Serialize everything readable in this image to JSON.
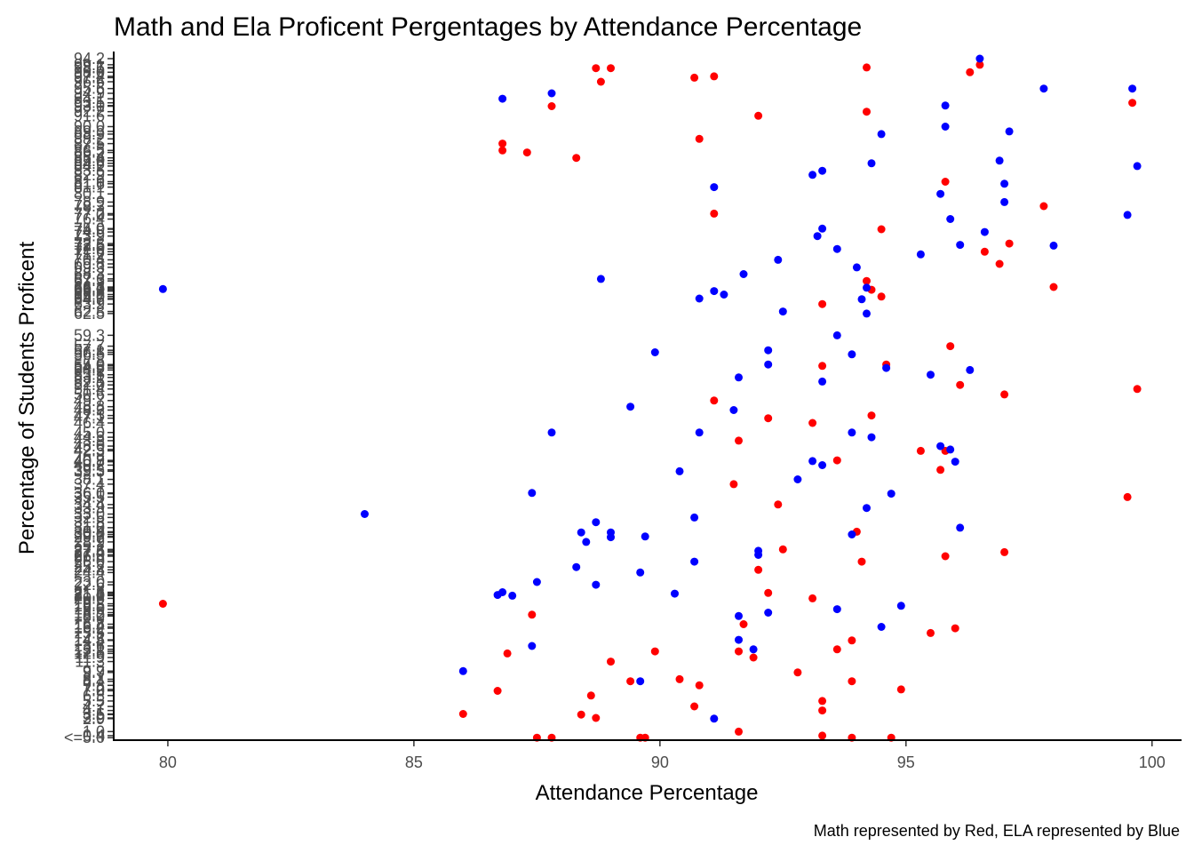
{
  "chart_data": {
    "type": "scatter",
    "title": "Math and Ela Proficent Pergentages by Attendance Percentage",
    "xlabel": "Attendance Percentage",
    "ylabel": "Percentage of Students Proficent",
    "caption": "Math represented by Red, ELA represented by Blue",
    "xlim": [
      78.9,
      100.6
    ],
    "x_ticks": [
      80,
      85,
      90,
      95,
      100
    ],
    "ylim": [
      0,
      100
    ],
    "y_ticks_note": "categorical y axis with overlapping labels; first label <=5.0, last label 94.2",
    "y_tick_first": "<=5.0",
    "y_tick_last": "94.2",
    "grid": false,
    "series": [
      {
        "name": "Math",
        "color": "#ff0000",
        "points": [
          [
            79.9,
            19.8
          ],
          [
            86.0,
            3.6
          ],
          [
            86.7,
            7.0
          ],
          [
            86.8,
            86.5
          ],
          [
            86.8,
            87.5
          ],
          [
            86.9,
            12.5
          ],
          [
            87.3,
            86.2
          ],
          [
            87.4,
            18.2
          ],
          [
            87.5,
            0.1
          ],
          [
            87.8,
            0.1
          ],
          [
            87.8,
            93.0
          ],
          [
            88.3,
            85.4
          ],
          [
            88.4,
            3.5
          ],
          [
            88.6,
            6.3
          ],
          [
            88.7,
            3.0
          ],
          [
            88.7,
            98.6
          ],
          [
            88.8,
            96.6
          ],
          [
            89.0,
            11.3
          ],
          [
            89.0,
            98.6
          ],
          [
            89.4,
            8.4
          ],
          [
            89.6,
            0.1
          ],
          [
            89.7,
            0.1
          ],
          [
            89.9,
            12.8
          ],
          [
            90.4,
            8.7
          ],
          [
            90.7,
            4.7
          ],
          [
            90.7,
            97.2
          ],
          [
            90.8,
            7.8
          ],
          [
            90.8,
            88.2
          ],
          [
            91.1,
            97.4
          ],
          [
            91.1,
            77.2
          ],
          [
            91.1,
            49.7
          ],
          [
            91.5,
            37.4
          ],
          [
            91.6,
            43.8
          ],
          [
            91.6,
            12.8
          ],
          [
            91.6,
            1.0
          ],
          [
            91.7,
            16.8
          ],
          [
            91.9,
            11.9
          ],
          [
            92.0,
            24.8
          ],
          [
            92.0,
            91.6
          ],
          [
            92.2,
            21.4
          ],
          [
            92.2,
            47.1
          ],
          [
            92.4,
            34.4
          ],
          [
            92.5,
            27.8
          ],
          [
            92.8,
            9.7
          ],
          [
            93.1,
            46.4
          ],
          [
            93.1,
            20.6
          ],
          [
            93.3,
            63.9
          ],
          [
            93.3,
            54.8
          ],
          [
            93.3,
            5.5
          ],
          [
            93.3,
            4.1
          ],
          [
            93.3,
            0.4
          ],
          [
            93.6,
            13.1
          ],
          [
            93.6,
            40.9
          ],
          [
            93.9,
            8.4
          ],
          [
            93.9,
            14.4
          ],
          [
            93.9,
            0.1
          ],
          [
            94.0,
            30.4
          ],
          [
            94.1,
            26.0
          ],
          [
            94.2,
            92.2
          ],
          [
            94.2,
            98.7
          ],
          [
            94.2,
            67.3
          ],
          [
            94.3,
            66.0
          ],
          [
            94.3,
            47.5
          ],
          [
            94.5,
            65.0
          ],
          [
            94.5,
            74.9
          ],
          [
            94.6,
            55.0
          ],
          [
            94.7,
            0.1
          ],
          [
            94.9,
            7.2
          ],
          [
            95.3,
            42.3
          ],
          [
            95.5,
            15.5
          ],
          [
            95.7,
            39.5
          ],
          [
            95.8,
            26.8
          ],
          [
            95.8,
            42.3
          ],
          [
            95.8,
            81.9
          ],
          [
            95.9,
            57.7
          ],
          [
            96.0,
            16.2
          ],
          [
            96.1,
            52.0
          ],
          [
            96.3,
            98.0
          ],
          [
            96.5,
            99.1
          ],
          [
            96.6,
            71.6
          ],
          [
            96.9,
            69.8
          ],
          [
            97.0,
            50.6
          ],
          [
            97.0,
            27.4
          ],
          [
            97.1,
            72.8
          ],
          [
            97.8,
            78.3
          ],
          [
            98.0,
            66.4
          ],
          [
            99.5,
            35.5
          ],
          [
            99.6,
            93.5
          ],
          [
            99.7,
            51.4
          ]
        ]
      },
      {
        "name": "ELA",
        "color": "#0000ff",
        "points": [
          [
            79.9,
            66.1
          ],
          [
            84.0,
            33.0
          ],
          [
            86.0,
            9.9
          ],
          [
            86.7,
            21.1
          ],
          [
            86.8,
            21.5
          ],
          [
            86.8,
            94.1
          ],
          [
            87.0,
            21.0
          ],
          [
            87.4,
            13.6
          ],
          [
            87.4,
            36.1
          ],
          [
            87.5,
            23.0
          ],
          [
            87.8,
            45.0
          ],
          [
            87.8,
            94.9
          ],
          [
            88.3,
            25.2
          ],
          [
            88.4,
            30.3
          ],
          [
            88.5,
            28.9
          ],
          [
            88.7,
            31.8
          ],
          [
            88.7,
            22.6
          ],
          [
            88.8,
            67.6
          ],
          [
            89.0,
            30.3
          ],
          [
            89.0,
            29.6
          ],
          [
            89.4,
            48.8
          ],
          [
            89.6,
            8.4
          ],
          [
            89.6,
            24.4
          ],
          [
            89.7,
            29.7
          ],
          [
            89.9,
            56.8
          ],
          [
            90.3,
            21.3
          ],
          [
            90.4,
            39.3
          ],
          [
            90.7,
            32.5
          ],
          [
            90.7,
            26.0
          ],
          [
            90.8,
            64.7
          ],
          [
            90.8,
            45.0
          ],
          [
            91.1,
            2.9
          ],
          [
            91.1,
            81.1
          ],
          [
            91.1,
            65.8
          ],
          [
            91.3,
            65.3
          ],
          [
            91.5,
            48.3
          ],
          [
            91.6,
            18.0
          ],
          [
            91.6,
            14.5
          ],
          [
            91.6,
            53.1
          ],
          [
            91.7,
            68.3
          ],
          [
            91.9,
            13.1
          ],
          [
            92.0,
            27.0
          ],
          [
            92.0,
            27.6
          ],
          [
            92.2,
            55.0
          ],
          [
            92.2,
            57.1
          ],
          [
            92.2,
            18.5
          ],
          [
            92.4,
            70.4
          ],
          [
            92.5,
            62.8
          ],
          [
            92.8,
            38.1
          ],
          [
            93.1,
            82.9
          ],
          [
            93.1,
            40.8
          ],
          [
            93.2,
            73.9
          ],
          [
            93.3,
            52.5
          ],
          [
            93.3,
            40.2
          ],
          [
            93.3,
            75.0
          ],
          [
            93.3,
            83.5
          ],
          [
            93.6,
            72.0
          ],
          [
            93.6,
            59.3
          ],
          [
            93.6,
            19.0
          ],
          [
            93.9,
            30.0
          ],
          [
            93.9,
            45.0
          ],
          [
            93.9,
            56.5
          ],
          [
            94.0,
            69.3
          ],
          [
            94.1,
            64.6
          ],
          [
            94.2,
            33.9
          ],
          [
            94.2,
            62.5
          ],
          [
            94.2,
            66.3
          ],
          [
            94.3,
            84.6
          ],
          [
            94.3,
            44.3
          ],
          [
            94.5,
            16.4
          ],
          [
            94.5,
            88.9
          ],
          [
            94.6,
            54.5
          ],
          [
            94.7,
            36.0
          ],
          [
            94.9,
            19.5
          ],
          [
            95.3,
            71.2
          ],
          [
            95.5,
            53.5
          ],
          [
            95.7,
            43.0
          ],
          [
            95.7,
            80.1
          ],
          [
            95.8,
            90.0
          ],
          [
            95.8,
            93.1
          ],
          [
            95.9,
            42.5
          ],
          [
            95.9,
            76.4
          ],
          [
            96.0,
            40.7
          ],
          [
            96.1,
            31.0
          ],
          [
            96.1,
            72.6
          ],
          [
            96.3,
            54.2
          ],
          [
            96.5,
            100.0
          ],
          [
            96.6,
            74.5
          ],
          [
            96.9,
            85.0
          ],
          [
            97.0,
            81.6
          ],
          [
            97.0,
            78.9
          ],
          [
            97.1,
            89.3
          ],
          [
            97.8,
            95.6
          ],
          [
            98.0,
            72.5
          ],
          [
            99.5,
            77.0
          ],
          [
            99.6,
            95.6
          ],
          [
            99.7,
            84.2
          ]
        ]
      }
    ]
  }
}
